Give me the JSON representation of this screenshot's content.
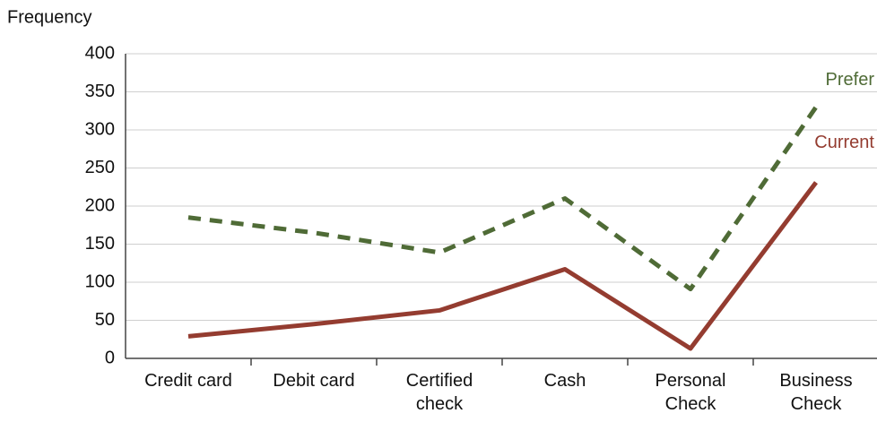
{
  "chart_data": {
    "type": "line",
    "y_axis_label": "Frequency",
    "categories": [
      "Credit card",
      "Debit card",
      "Certified check",
      "Cash",
      "Personal Check",
      "Business Check"
    ],
    "series": [
      {
        "name": "Prefer",
        "color": "#4f6b36",
        "dashed": true,
        "values": [
          185,
          165,
          139,
          210,
          91,
          330
        ]
      },
      {
        "name": "Current",
        "color": "#943c30",
        "dashed": false,
        "values": [
          29,
          45,
          63,
          117,
          13,
          231
        ]
      }
    ],
    "ylim": [
      0,
      400
    ],
    "yticks": [
      0,
      50,
      100,
      150,
      200,
      250,
      300,
      350,
      400
    ],
    "grid": true
  }
}
